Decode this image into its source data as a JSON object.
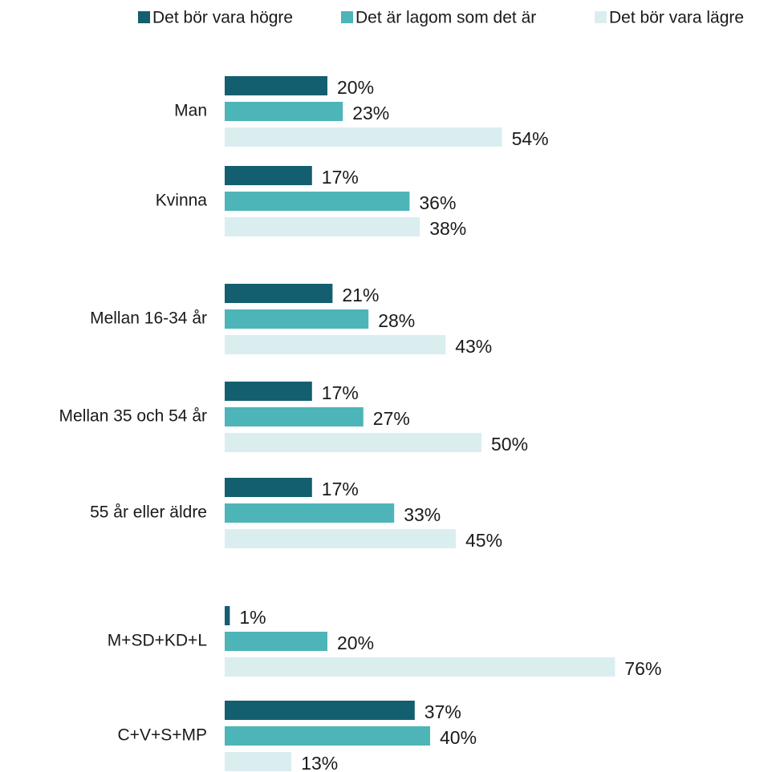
{
  "chart_data": {
    "type": "hbar",
    "categories": [
      "Man",
      "Kvinna",
      "Mellan 16-34 år",
      "Mellan 35 och 54 år",
      "55 år eller äldre",
      "M+SD+KD+L",
      "C+V+S+MP"
    ],
    "series": [
      {
        "name": "Det bör vara högre",
        "color": "#135f70",
        "values": [
          20,
          17,
          21,
          17,
          17,
          1,
          37
        ],
        "value_labels": [
          "20%",
          "17%",
          "21%",
          "17%",
          "17%",
          "1%",
          "37%"
        ]
      },
      {
        "name": "Det är lagom som det är",
        "color": "#4db5b8",
        "values": [
          23,
          36,
          28,
          27,
          33,
          20,
          40
        ],
        "value_labels": [
          "23%",
          "36%",
          "28%",
          "27%",
          "33%",
          "20%",
          "40%"
        ]
      },
      {
        "name": "Det bör vara lägre",
        "color": "#daeef0",
        "values": [
          54,
          38,
          43,
          50,
          45,
          76,
          13
        ],
        "value_labels": [
          "54%",
          "38%",
          "43%",
          "50%",
          "45%",
          "76%",
          "13%"
        ]
      }
    ],
    "legend": "top"
  }
}
